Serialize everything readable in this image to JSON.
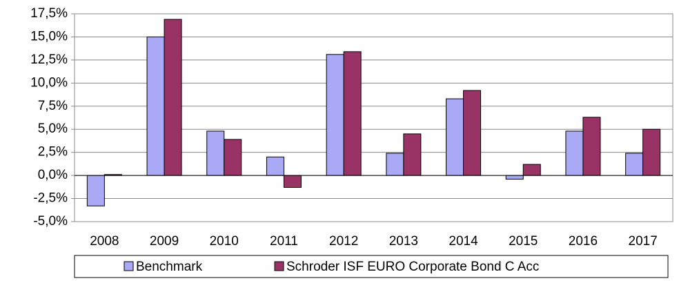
{
  "chart_data": {
    "type": "bar",
    "categories": [
      "2008",
      "2009",
      "2010",
      "2011",
      "2012",
      "2013",
      "2014",
      "2015",
      "2016",
      "2017"
    ],
    "series": [
      {
        "name": "Benchmark",
        "color": "#a9a9f5",
        "values": [
          -3.3,
          15.0,
          4.8,
          2.0,
          13.1,
          2.4,
          8.3,
          -0.4,
          4.8,
          2.4
        ]
      },
      {
        "name": "Schroder ISF EURO Corporate Bond C Acc",
        "color": "#993366",
        "values": [
          0.1,
          16.9,
          3.9,
          -1.3,
          13.4,
          4.5,
          9.2,
          1.2,
          6.3,
          5.0
        ]
      }
    ],
    "ylim": [
      -5,
      17.5
    ],
    "yticks": [
      {
        "value": -5,
        "label": "-5,0%"
      },
      {
        "value": -2.5,
        "label": "-2,5%"
      },
      {
        "value": 0,
        "label": "0,0%"
      },
      {
        "value": 2.5,
        "label": "2,5%"
      },
      {
        "value": 5,
        "label": "5,0%"
      },
      {
        "value": 7.5,
        "label": "7,5%"
      },
      {
        "value": 10,
        "label": "10,0%"
      },
      {
        "value": 12.5,
        "label": "12,5%"
      },
      {
        "value": 15,
        "label": "15,0%"
      },
      {
        "value": 17.5,
        "label": "17,5%"
      }
    ],
    "grid": true,
    "legend": "bottom"
  }
}
